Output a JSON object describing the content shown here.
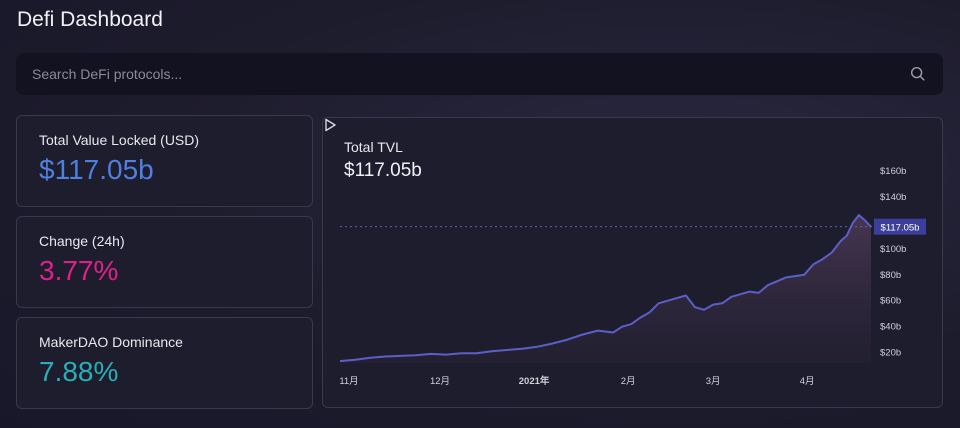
{
  "page_title": "Defi Dashboard",
  "search": {
    "placeholder": "Search DeFi protocols...",
    "icon": "search-icon"
  },
  "stats": [
    {
      "label": "Total Value Locked (USD)",
      "value": "$117.05b",
      "color": "#4f7fe0"
    },
    {
      "label": "Change (24h)",
      "value": "3.77%",
      "color": "#e0208a"
    },
    {
      "label": "MakerDAO Dominance",
      "value": "7.88%",
      "color": "#2aaeb8"
    }
  ],
  "chart": {
    "title": "Total TVL",
    "current_value": "$117.05b",
    "play_icon": "play-icon"
  },
  "chart_data": {
    "type": "area",
    "title": "Total TVL",
    "y_ticks": [
      "$20b",
      "$40b",
      "$60b",
      "$80b",
      "$100b",
      "$140b",
      "$160b"
    ],
    "y_tick_values": [
      20,
      40,
      60,
      80,
      100,
      140,
      160
    ],
    "ylim": [
      12,
      170
    ],
    "x_ticks": [
      "11月",
      "12月",
      "2021年",
      "2月",
      "3月",
      "4月"
    ],
    "x_tick_positions": [
      0,
      30,
      61,
      92,
      120,
      151
    ],
    "current_label": "$117.05b",
    "current_value": 117.05,
    "line_color": "#5b5fc7",
    "x": [
      0,
      5,
      10,
      15,
      20,
      25,
      30,
      35,
      40,
      45,
      50,
      55,
      60,
      65,
      70,
      75,
      80,
      85,
      90,
      93,
      96,
      99,
      102,
      105,
      108,
      111,
      114,
      117,
      120,
      123,
      126,
      129,
      132,
      135,
      138,
      141,
      144,
      147,
      150,
      153,
      156,
      159,
      162,
      165,
      167,
      169,
      171,
      173,
      175
    ],
    "values": [
      13.5,
      14.5,
      16,
      17,
      17.5,
      18,
      19,
      18.5,
      19.5,
      19.5,
      21,
      22,
      23,
      24.5,
      27,
      30,
      34,
      37,
      35.5,
      40,
      42,
      47,
      51,
      58,
      60,
      62,
      64,
      55,
      53,
      57,
      58,
      63,
      65,
      67,
      66,
      72,
      75,
      78,
      79,
      80,
      88,
      92,
      97,
      106,
      110,
      120,
      126,
      122,
      117
    ]
  }
}
